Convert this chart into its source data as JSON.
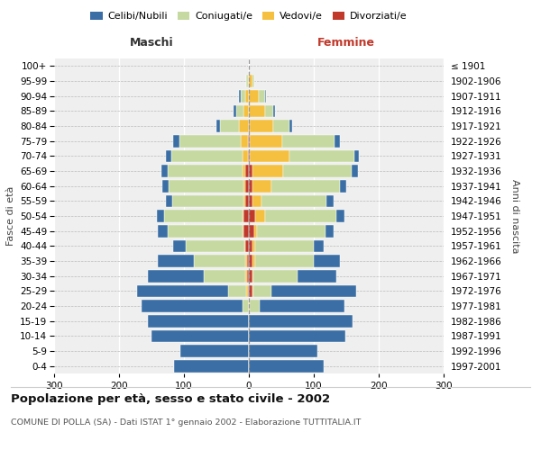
{
  "age_groups": [
    "0-4",
    "5-9",
    "10-14",
    "15-19",
    "20-24",
    "25-29",
    "30-34",
    "35-39",
    "40-44",
    "45-49",
    "50-54",
    "55-59",
    "60-64",
    "65-69",
    "70-74",
    "75-79",
    "80-84",
    "85-89",
    "90-94",
    "95-99",
    "100+"
  ],
  "birth_years": [
    "1997-2001",
    "1992-1996",
    "1987-1991",
    "1982-1986",
    "1977-1981",
    "1972-1976",
    "1967-1971",
    "1962-1966",
    "1957-1961",
    "1952-1956",
    "1947-1951",
    "1942-1946",
    "1937-1941",
    "1932-1936",
    "1927-1931",
    "1922-1926",
    "1917-1921",
    "1912-1916",
    "1907-1911",
    "1902-1906",
    "≤ 1901"
  ],
  "males": {
    "celibi": [
      115,
      105,
      150,
      155,
      155,
      140,
      85,
      55,
      20,
      15,
      12,
      10,
      10,
      10,
      8,
      10,
      5,
      3,
      2,
      0,
      0
    ],
    "coniugati": [
      0,
      0,
      0,
      0,
      10,
      28,
      65,
      80,
      90,
      115,
      120,
      110,
      115,
      115,
      110,
      95,
      30,
      12,
      8,
      2,
      0
    ],
    "vedovi": [
      0,
      0,
      0,
      0,
      0,
      2,
      2,
      2,
      2,
      2,
      2,
      3,
      3,
      5,
      8,
      10,
      15,
      8,
      5,
      2,
      0
    ],
    "divorziati": [
      0,
      0,
      0,
      0,
      0,
      2,
      3,
      3,
      5,
      8,
      8,
      5,
      5,
      5,
      2,
      2,
      0,
      0,
      0,
      0,
      0
    ]
  },
  "females": {
    "nubili": [
      115,
      105,
      148,
      160,
      130,
      130,
      60,
      40,
      15,
      12,
      12,
      10,
      10,
      10,
      8,
      8,
      5,
      3,
      2,
      0,
      0
    ],
    "coniugate": [
      0,
      0,
      0,
      0,
      15,
      28,
      68,
      90,
      90,
      105,
      110,
      100,
      105,
      105,
      100,
      80,
      25,
      12,
      10,
      3,
      0
    ],
    "vedove": [
      0,
      0,
      0,
      0,
      2,
      2,
      2,
      5,
      5,
      5,
      15,
      15,
      30,
      48,
      60,
      50,
      35,
      25,
      15,
      5,
      0
    ],
    "divorziate": [
      0,
      0,
      0,
      0,
      0,
      5,
      5,
      5,
      5,
      8,
      10,
      5,
      5,
      5,
      2,
      2,
      2,
      0,
      0,
      0,
      0
    ]
  },
  "colors": {
    "celibi": "#3a6ea5",
    "coniugati": "#c5d9a0",
    "vedovi": "#f5c040",
    "divorziati": "#c0392b"
  },
  "xlim": 300,
  "title": "Popolazione per età, sesso e stato civile - 2002",
  "subtitle": "COMUNE DI POLLA (SA) - Dati ISTAT 1° gennaio 2002 - Elaborazione TUTTITALIA.IT",
  "ylabel_left": "Fasce di età",
  "ylabel_right": "Anni di nascita",
  "xlabel_left": "Maschi",
  "xlabel_right": "Femmine",
  "legend_labels": [
    "Celibi/Nubili",
    "Coniugati/e",
    "Vedovi/e",
    "Divorziati/e"
  ],
  "bg_color": "#ffffff",
  "plot_bg": "#efefef",
  "bar_edge_color": "#ffffff"
}
